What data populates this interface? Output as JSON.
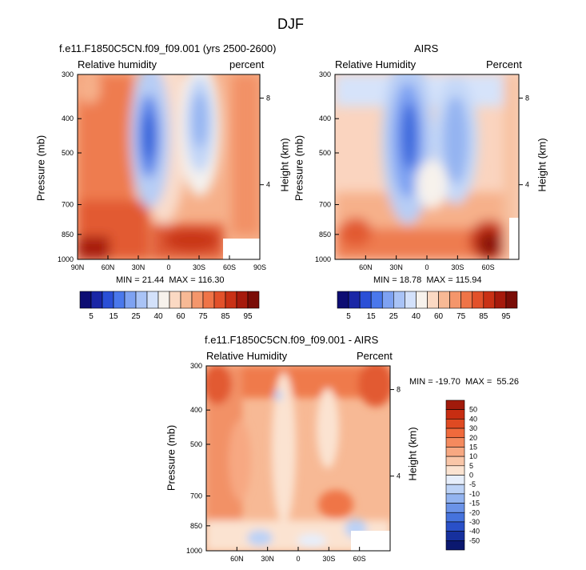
{
  "page": {
    "title": "DJF"
  },
  "chart_data": [
    {
      "type": "heatmap",
      "title": "f.e11.F1850C5CN.f09_f09.001 (yrs 2500-2600)",
      "left_label": "Relative humidity",
      "right_label": "percent",
      "ylabel": "Pressure (mb)",
      "y2label": "Height (km)",
      "x_ticks": [
        "90N",
        "60N",
        "30N",
        "0",
        "30S",
        "60S",
        "90S"
      ],
      "y_ticks": [
        "300",
        "400",
        "500",
        "700",
        "850",
        "1000"
      ],
      "y2_ticks": [
        "8",
        "4"
      ],
      "stats": "MIN = 21.44  MAX = 116.30",
      "colorbar_labels": [
        "5",
        "15",
        "25",
        "40",
        "60",
        "75",
        "85",
        "95"
      ],
      "colorbar_colors": [
        "#0d0d73",
        "#1a26a6",
        "#2a4fd6",
        "#4a78ec",
        "#7ea2f2",
        "#a9c3f6",
        "#d3e1fa",
        "#f7f2ec",
        "#fbd9c3",
        "#f7b995",
        "#f4966b",
        "#ef7447",
        "#e2512a",
        "#c93115",
        "#a61a0c",
        "#7a0d07"
      ],
      "ylim": [
        1000,
        300
      ]
    },
    {
      "type": "heatmap",
      "title": "AIRS",
      "left_label": "Relative Humidity",
      "right_label": "Percent",
      "ylabel": "Pressure (mb)",
      "y2label": "Height (km)",
      "x_ticks": [
        "60N",
        "30N",
        "0",
        "30S",
        "60S"
      ],
      "y_ticks": [
        "300",
        "400",
        "500",
        "700",
        "850",
        "1000"
      ],
      "y2_ticks": [
        "8",
        "4"
      ],
      "stats": "MIN = 18.78  MAX = 115.94",
      "colorbar_labels": [
        "5",
        "15",
        "25",
        "40",
        "60",
        "75",
        "85",
        "95"
      ],
      "colorbar_colors": [
        "#0d0d73",
        "#1a26a6",
        "#2a4fd6",
        "#4a78ec",
        "#7ea2f2",
        "#a9c3f6",
        "#d3e1fa",
        "#f7f2ec",
        "#fbd9c3",
        "#f7b995",
        "#f4966b",
        "#ef7447",
        "#e2512a",
        "#c93115",
        "#a61a0c",
        "#7a0d07"
      ],
      "ylim": [
        1000,
        300
      ]
    },
    {
      "type": "heatmap",
      "title": "f.e11.F1850C5CN.f09_f09.001 - AIRS",
      "left_label": "Relative Humidity",
      "right_label": "Percent",
      "ylabel": "Pressure (mb)",
      "y2label": "Height (km)",
      "x_ticks": [
        "60N",
        "30N",
        "0",
        "30S",
        "60S"
      ],
      "y_ticks": [
        "300",
        "400",
        "500",
        "700",
        "850",
        "1000"
      ],
      "y2_ticks": [
        "8",
        "4"
      ],
      "stats": "MIN = -19.70  MAX =  55.26",
      "colorbar_labels": [
        "50",
        "40",
        "30",
        "20",
        "15",
        "10",
        "5",
        "0",
        "-5",
        "-10",
        "-15",
        "-20",
        "-30",
        "-40",
        "-50"
      ],
      "colorbar_colors": [
        "#a11a0b",
        "#c72d12",
        "#df4a22",
        "#f06a3c",
        "#f48a5e",
        "#f7a882",
        "#f9c6a8",
        "#fbe3d1",
        "#e6eefb",
        "#bcd2f6",
        "#93b4f0",
        "#6b93e8",
        "#4673dd",
        "#2a50c8",
        "#16309e",
        "#0b186f"
      ],
      "ylim": [
        1000,
        300
      ]
    }
  ]
}
